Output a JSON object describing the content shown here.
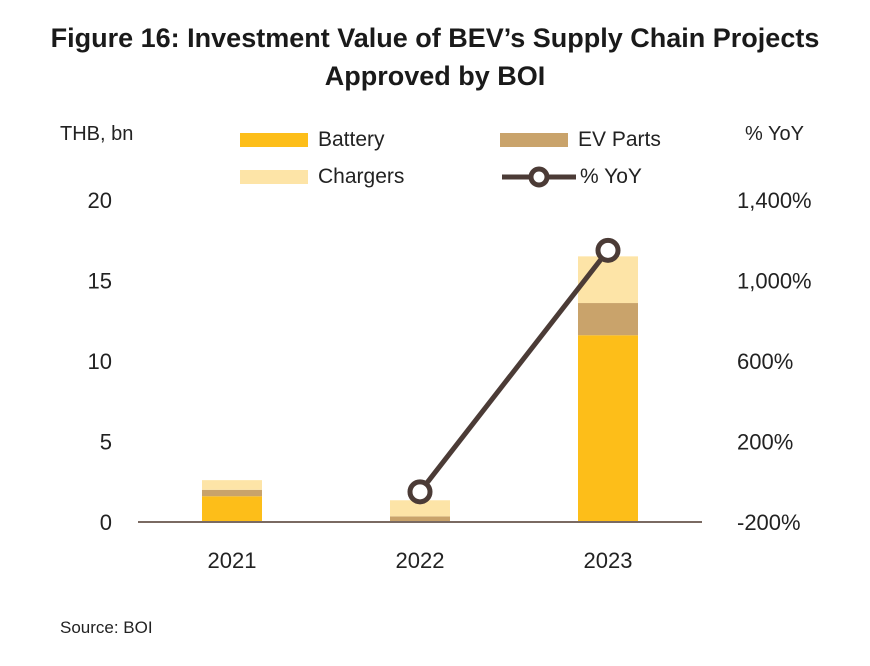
{
  "title_line1": "Figure 16: Investment Value of BEV’s Supply Chain Projects",
  "title_line2": "Approved by BOI",
  "source": "Source: BOI",
  "chart_data": {
    "type": "bar",
    "stacked": true,
    "categories": [
      "2021",
      "2022",
      "2023"
    ],
    "series": [
      {
        "name": "Battery",
        "values": [
          1.6,
          0.05,
          11.6
        ],
        "color": "#FDBE19"
      },
      {
        "name": "EV Parts",
        "values": [
          0.4,
          0.3,
          2.0
        ],
        "color": "#C9A36B"
      },
      {
        "name": "Chargers",
        "values": [
          0.6,
          1.0,
          2.9
        ],
        "color": "#FDE4A7"
      }
    ],
    "line_series": {
      "name": "% YoY",
      "values": [
        null,
        -50,
        1150
      ],
      "color": "#4B3B36"
    },
    "ylabel_left": "THB, bn",
    "ylabel_right": "% YoY",
    "ylim_left": [
      0,
      20
    ],
    "ylim_right": [
      -200,
      1400
    ],
    "yticks_left": [
      "0",
      "5",
      "10",
      "15",
      "20"
    ],
    "yticks_right": [
      "-200%",
      "200%",
      "600%",
      "1,000%",
      "1,400%"
    ],
    "grid": false,
    "legend_position": "top"
  }
}
